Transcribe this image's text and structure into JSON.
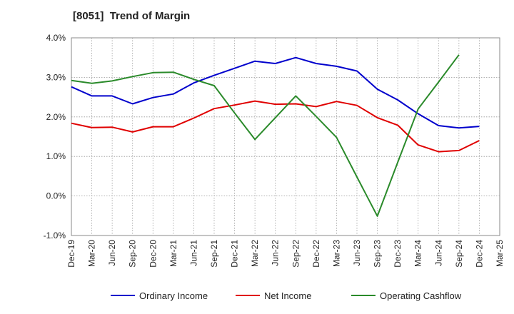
{
  "chart_data": {
    "type": "line",
    "title": "[8051]  Trend of Margin",
    "xlabel": "",
    "ylabel": "",
    "x": [
      "Dec-19",
      "Mar-20",
      "Jun-20",
      "Sep-20",
      "Dec-20",
      "Mar-21",
      "Jun-21",
      "Sep-21",
      "Dec-21",
      "Mar-22",
      "Jun-22",
      "Sep-22",
      "Dec-22",
      "Mar-23",
      "Jun-23",
      "Sep-23",
      "Dec-23",
      "Mar-24",
      "Jun-24",
      "Sep-24",
      "Dec-24",
      "Mar-25"
    ],
    "ylim": [
      -1.0,
      4.0
    ],
    "yticks": [
      -1.0,
      0.0,
      1.0,
      2.0,
      3.0,
      4.0
    ],
    "ytick_labels": [
      "-1.0%",
      "0.0%",
      "1.0%",
      "2.0%",
      "3.0%",
      "4.0%"
    ],
    "grid": true,
    "legend_position": "bottom",
    "series": [
      {
        "name": "Ordinary Income",
        "color": "#0000cc",
        "values": [
          2.76,
          2.53,
          2.53,
          2.33,
          2.49,
          2.58,
          2.86,
          3.05,
          3.23,
          3.41,
          3.35,
          3.5,
          3.35,
          3.28,
          3.16,
          2.7,
          2.43,
          2.08,
          1.78,
          1.72,
          1.76,
          null
        ]
      },
      {
        "name": "Net Income",
        "color": "#e00000",
        "values": [
          1.84,
          1.73,
          1.74,
          1.62,
          1.75,
          1.75,
          1.97,
          2.21,
          2.3,
          2.4,
          2.32,
          2.33,
          2.26,
          2.39,
          2.29,
          1.98,
          1.79,
          1.29,
          1.12,
          1.15,
          1.4,
          null
        ]
      },
      {
        "name": "Operating Cashflow",
        "color": "#2a8a2a",
        "values": [
          2.92,
          2.85,
          2.91,
          3.02,
          3.12,
          3.13,
          2.95,
          2.79,
          2.1,
          1.43,
          1.98,
          2.53,
          2.01,
          1.48,
          0.48,
          -0.51,
          0.85,
          2.2,
          2.88,
          3.57,
          null,
          null
        ]
      }
    ]
  }
}
